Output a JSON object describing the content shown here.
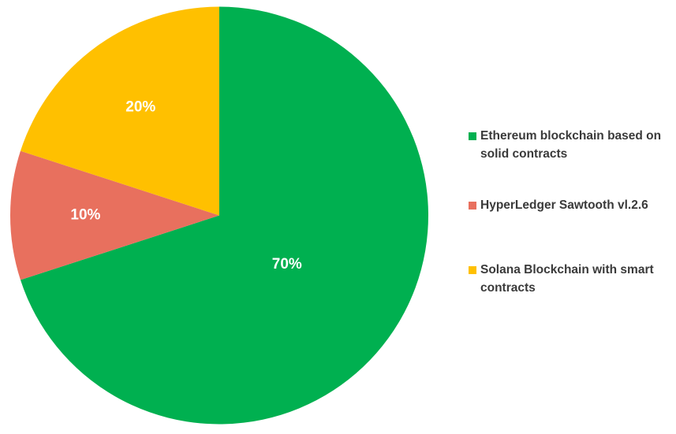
{
  "chart_data": {
    "type": "pie",
    "title": "",
    "start_angle_deg": 0,
    "direction": "clockwise",
    "data_labels": true,
    "legend_position": "right",
    "slices": [
      {
        "label": "Ethereum blockchain based on solid contracts",
        "value": 70,
        "display": "70%",
        "color": "#00b050"
      },
      {
        "label": "HyperLedger Sawtooth vl.2.6",
        "value": 10,
        "display": "10%",
        "color": "#e8705e"
      },
      {
        "label": "Solana Blockchain with smart contracts",
        "value": 20,
        "display": "20%",
        "color": "#ffc000"
      }
    ]
  }
}
